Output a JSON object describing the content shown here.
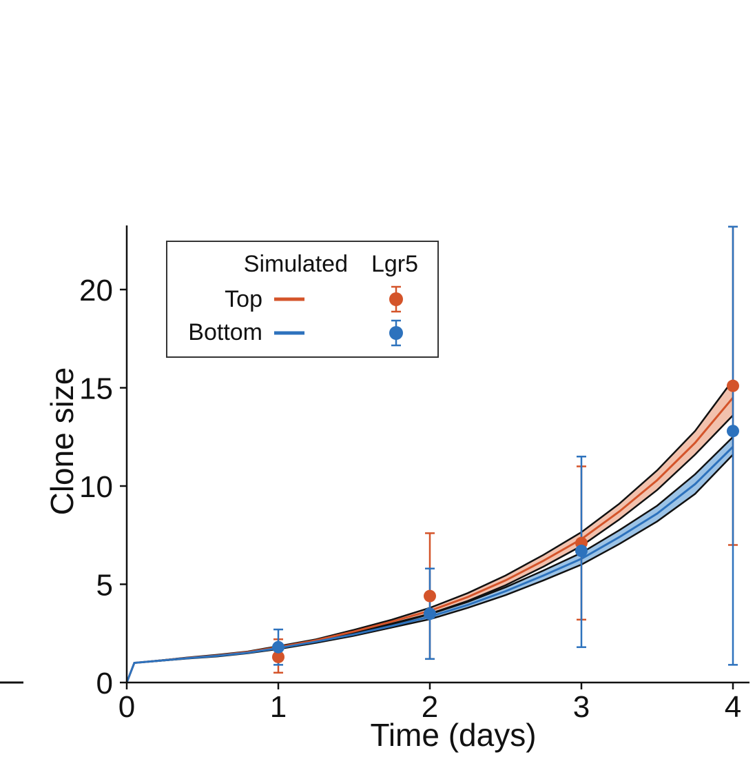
{
  "chart_data": {
    "type": "line",
    "xlabel": "Time (days)",
    "ylabel": "Clone size",
    "xlim": [
      0,
      4.1
    ],
    "ylim": [
      0,
      23.2
    ],
    "xticks": [
      0,
      1,
      2,
      3,
      4
    ],
    "xtick_labels": [
      "0",
      "1",
      "2",
      "3",
      "4"
    ],
    "yticks": [
      0,
      5,
      10,
      15,
      20
    ],
    "ytick_labels": [
      "0",
      "5",
      "10",
      "15",
      "20"
    ],
    "grid": false,
    "legend": {
      "placement": "top-left",
      "col_simulated": "Simulated",
      "col_lgr5": "Lgr5",
      "rows": [
        "Top",
        "Bottom"
      ]
    },
    "colors": {
      "top": "#d4542a",
      "bottom": "#2d72bd",
      "top_band": "#f2c1ad",
      "bottom_band": "#9cc3e6"
    },
    "simulated": [
      {
        "name": "Top",
        "x": [
          0,
          0.05,
          0.2,
          0.4,
          0.6,
          0.8,
          1.0,
          1.25,
          1.5,
          1.75,
          2.0,
          2.25,
          2.5,
          2.75,
          3.0,
          3.25,
          3.5,
          3.75,
          4.0
        ],
        "mean": [
          0,
          1.0,
          1.1,
          1.25,
          1.38,
          1.55,
          1.8,
          2.15,
          2.6,
          3.1,
          3.65,
          4.35,
          5.2,
          6.2,
          7.3,
          8.7,
          10.3,
          12.2,
          14.5
        ],
        "lower": [
          0,
          1.0,
          1.09,
          1.23,
          1.35,
          1.52,
          1.76,
          2.1,
          2.52,
          3.0,
          3.5,
          4.15,
          4.95,
          5.9,
          6.95,
          8.3,
          9.8,
          11.6,
          13.6
        ],
        "upper": [
          0,
          1.0,
          1.11,
          1.27,
          1.41,
          1.58,
          1.85,
          2.2,
          2.68,
          3.2,
          3.8,
          4.55,
          5.45,
          6.5,
          7.65,
          9.1,
          10.8,
          12.8,
          15.4
        ]
      },
      {
        "name": "Bottom",
        "x": [
          0,
          0.05,
          0.2,
          0.4,
          0.6,
          0.8,
          1.0,
          1.25,
          1.5,
          1.75,
          2.0,
          2.25,
          2.5,
          2.75,
          3.0,
          3.25,
          3.5,
          3.75,
          4.0
        ],
        "mean": [
          0,
          1.0,
          1.1,
          1.24,
          1.36,
          1.52,
          1.75,
          2.08,
          2.45,
          2.88,
          3.35,
          3.95,
          4.65,
          5.45,
          6.3,
          7.4,
          8.6,
          10.1,
          12.0
        ],
        "lower": [
          0,
          1.0,
          1.09,
          1.22,
          1.33,
          1.49,
          1.7,
          2.02,
          2.38,
          2.8,
          3.22,
          3.8,
          4.45,
          5.2,
          6.0,
          7.05,
          8.2,
          9.6,
          11.6
        ],
        "upper": [
          0,
          1.0,
          1.11,
          1.26,
          1.39,
          1.55,
          1.8,
          2.14,
          2.52,
          2.96,
          3.48,
          4.1,
          4.85,
          5.7,
          6.6,
          7.75,
          9.0,
          10.6,
          12.5
        ]
      }
    ],
    "lgr5": [
      {
        "name": "Top",
        "x": [
          1,
          2,
          3,
          4
        ],
        "y": [
          1.3,
          4.4,
          7.1,
          15.1
        ],
        "err_low": [
          0.5,
          1.2,
          3.2,
          7.0
        ],
        "err_high": [
          2.2,
          7.6,
          11.0,
          23.2
        ]
      },
      {
        "name": "Bottom",
        "x": [
          1,
          2,
          3,
          4
        ],
        "y": [
          1.8,
          3.5,
          6.7,
          12.8
        ],
        "err_low": [
          0.9,
          1.2,
          1.8,
          0.9
        ],
        "err_high": [
          2.7,
          5.8,
          11.5,
          23.2
        ]
      }
    ]
  }
}
